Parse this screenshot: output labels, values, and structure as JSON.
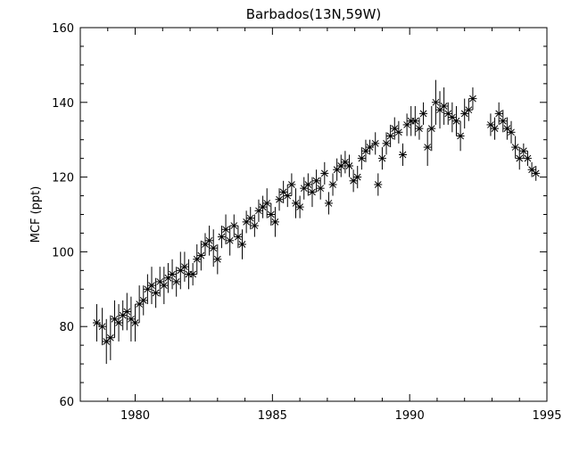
{
  "chart_data": {
    "type": "scatter",
    "title": "Barbados(13N,59W)",
    "xlabel": "",
    "ylabel": "MCF (ppt)",
    "xlim": [
      1978,
      1995
    ],
    "ylim": [
      60,
      160
    ],
    "xticks": [
      1980,
      1985,
      1990,
      1995
    ],
    "yticks": [
      60,
      80,
      100,
      120,
      140,
      160
    ],
    "marker": "asterisk",
    "error_bars": true,
    "grid": false,
    "legend": "none",
    "series": [
      {
        "x": [
          1978.6,
          1978.8,
          1978.95,
          1979.1,
          1979.25,
          1979.4,
          1979.55,
          1979.7,
          1979.85,
          1980.0,
          1980.15,
          1980.3,
          1980.45,
          1980.6,
          1980.75,
          1980.9,
          1981.05,
          1981.2,
          1981.35,
          1981.5,
          1981.65,
          1981.8,
          1981.95,
          1982.1,
          1982.25,
          1982.4,
          1982.55,
          1982.7,
          1982.85,
          1983.0,
          1983.15,
          1983.3,
          1983.45,
          1983.6,
          1983.75,
          1983.9,
          1984.05,
          1984.2,
          1984.35,
          1984.5,
          1984.65,
          1984.8,
          1984.95,
          1985.1,
          1985.25,
          1985.4,
          1985.55,
          1985.7,
          1985.85,
          1986.0,
          1986.15,
          1986.3,
          1986.45,
          1986.6,
          1986.75,
          1986.9,
          1987.05,
          1987.2,
          1987.35,
          1987.5,
          1987.65,
          1987.8,
          1987.95,
          1988.1,
          1988.25,
          1988.4,
          1988.55,
          1988.75,
          1988.85,
          1989.0,
          1989.15,
          1989.3,
          1989.45,
          1989.6,
          1989.75,
          1989.9,
          1990.05,
          1990.2,
          1990.35,
          1990.5,
          1990.65,
          1990.8,
          1990.95,
          1991.1,
          1991.25,
          1991.4,
          1991.55,
          1991.7,
          1991.85,
          1992.0,
          1992.15,
          1992.3,
          1992.95,
          1993.1,
          1993.25,
          1993.4,
          1993.55,
          1993.7,
          1993.85,
          1994.0,
          1994.15,
          1994.3,
          1994.45,
          1994.6
        ],
        "y": [
          81,
          80,
          76,
          77,
          82,
          81,
          83,
          84,
          82,
          81,
          86,
          87,
          90,
          91,
          89,
          92,
          91,
          93,
          94,
          92,
          95,
          96,
          94,
          94,
          98,
          99,
          102,
          103,
          101,
          98,
          104,
          106,
          103,
          107,
          104,
          102,
          108,
          109,
          107,
          111,
          112,
          113,
          110,
          108,
          114,
          116,
          115,
          118,
          113,
          112,
          117,
          118,
          116,
          119,
          117,
          121,
          113,
          118,
          122,
          123,
          124,
          123,
          119,
          120,
          125,
          127,
          128,
          129,
          118,
          125,
          129,
          131,
          133,
          132,
          126,
          134,
          135,
          135,
          133,
          137,
          128,
          133,
          140,
          138,
          139,
          137,
          136,
          135,
          131,
          137,
          138,
          141,
          134,
          133,
          137,
          135,
          133,
          132,
          128,
          125,
          127,
          125,
          122,
          121
        ],
        "err": [
          5,
          5,
          6,
          6,
          5,
          5,
          4,
          5,
          6,
          5,
          5,
          4,
          4,
          5,
          4,
          4,
          5,
          4,
          4,
          4,
          5,
          4,
          4,
          3,
          4,
          4,
          3,
          4,
          5,
          4,
          3,
          4,
          4,
          3,
          3,
          4,
          3,
          3,
          3,
          3,
          3,
          4,
          3,
          4,
          3,
          3,
          3,
          3,
          4,
          3,
          3,
          3,
          4,
          3,
          3,
          3,
          3,
          3,
          3,
          3,
          3,
          3,
          3,
          3,
          3,
          3,
          2,
          3,
          3,
          3,
          3,
          3,
          3,
          3,
          3,
          3,
          4,
          4,
          3,
          3,
          5,
          6,
          6,
          5,
          5,
          3,
          4,
          4,
          4,
          4,
          3,
          3,
          3,
          3,
          3,
          3,
          3,
          3,
          3,
          3,
          2,
          2,
          2,
          2
        ]
      }
    ]
  }
}
